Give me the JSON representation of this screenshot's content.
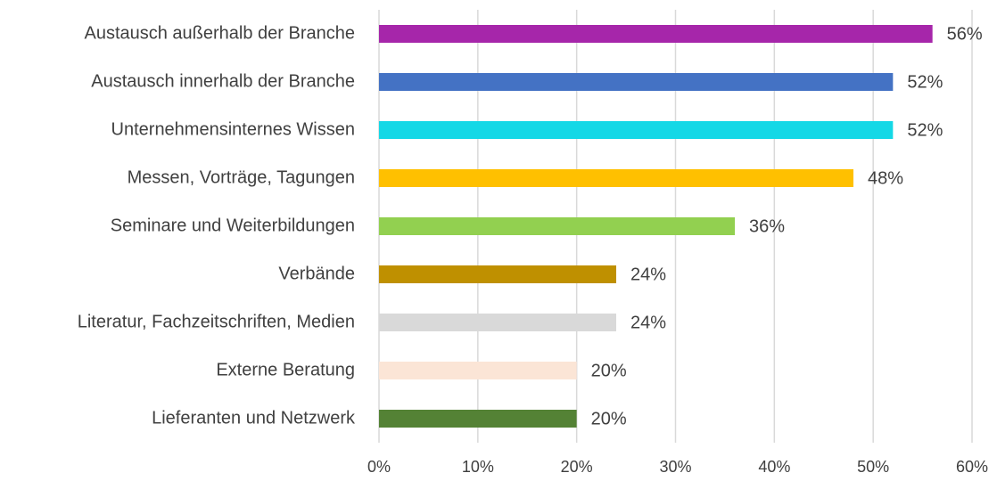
{
  "chart_data": {
    "type": "bar",
    "orientation": "horizontal",
    "categories": [
      "Austausch außerhalb der Branche",
      "Austausch innerhalb der Branche",
      "Unternehmensinternes Wissen",
      "Messen, Vorträge, Tagungen",
      "Seminare und Weiterbildungen",
      "Verbände",
      "Literatur, Fachzeitschriften, Medien",
      "Externe Beratung",
      "Lieferanten und Netzwerk"
    ],
    "values": [
      56,
      52,
      52,
      48,
      36,
      24,
      24,
      20,
      20
    ],
    "value_labels": [
      "56%",
      "52%",
      "52%",
      "48%",
      "36%",
      "24%",
      "24%",
      "20%",
      "20%"
    ],
    "colors": [
      "#a626aa",
      "#4472c4",
      "#14d8e6",
      "#ffc000",
      "#92d050",
      "#bf9000",
      "#d9d9d9",
      "#fbe5d6",
      "#548235"
    ],
    "xlim": [
      0,
      60
    ],
    "xticks": [
      {
        "value": 0,
        "label": "0%"
      },
      {
        "value": 10,
        "label": "10%"
      },
      {
        "value": 20,
        "label": "20%"
      },
      {
        "value": 30,
        "label": "30%"
      },
      {
        "value": 40,
        "label": "40%"
      },
      {
        "value": 50,
        "label": "50%"
      },
      {
        "value": 60,
        "label": "60%"
      }
    ],
    "grid": true
  }
}
